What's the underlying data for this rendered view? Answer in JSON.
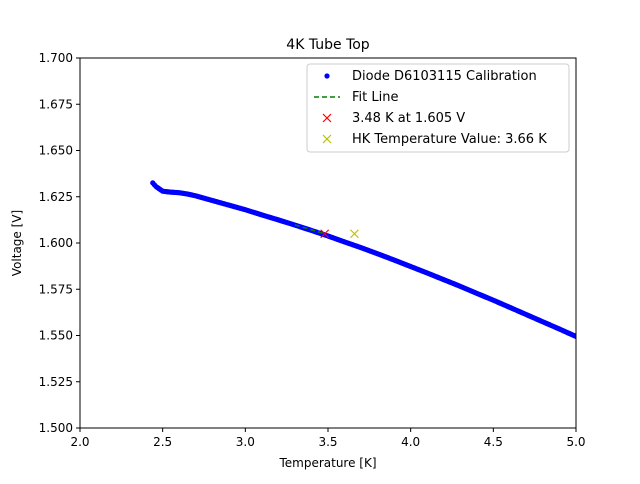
{
  "chart_data": {
    "type": "scatter",
    "title": "4K Tube Top",
    "xlabel": "Temperature [K]",
    "ylabel": "Voltage [V]",
    "xlim": [
      2.0,
      5.0
    ],
    "ylim": [
      1.5,
      1.7
    ],
    "grid": false,
    "legend_position": "top-right",
    "x_ticks": [
      {
        "value": 2.0,
        "label": "2.0"
      },
      {
        "value": 2.5,
        "label": "2.5"
      },
      {
        "value": 3.0,
        "label": "3.0"
      },
      {
        "value": 3.5,
        "label": "3.5"
      },
      {
        "value": 4.0,
        "label": "4.0"
      },
      {
        "value": 4.5,
        "label": "4.5"
      },
      {
        "value": 5.0,
        "label": "5.0"
      }
    ],
    "y_ticks": [
      {
        "value": 1.5,
        "label": "1.500"
      },
      {
        "value": 1.525,
        "label": "1.525"
      },
      {
        "value": 1.55,
        "label": "1.550"
      },
      {
        "value": 1.575,
        "label": "1.575"
      },
      {
        "value": 1.6,
        "label": "1.600"
      },
      {
        "value": 1.625,
        "label": "1.625"
      },
      {
        "value": 1.65,
        "label": "1.650"
      },
      {
        "value": 1.675,
        "label": "1.675"
      },
      {
        "value": 1.7,
        "label": "1.700"
      }
    ],
    "series": [
      {
        "name": "Diode D6103115 Calibration",
        "kind": "points",
        "marker": "dot",
        "color": "#0000ff",
        "x": [
          2.44,
          2.45,
          2.46,
          2.5,
          2.55,
          2.6,
          2.65,
          2.7,
          2.8,
          2.9,
          3.0,
          3.1,
          3.2,
          3.3,
          3.4,
          3.5,
          3.6,
          3.7,
          3.8,
          3.9,
          4.0,
          4.1,
          4.2,
          4.3,
          4.4,
          4.5,
          4.6,
          4.7,
          4.8,
          4.9,
          5.0
        ],
        "y": [
          1.6325,
          1.6315,
          1.6305,
          1.628,
          1.6275,
          1.6272,
          1.6265,
          1.6255,
          1.623,
          1.6205,
          1.618,
          1.6152,
          1.6125,
          1.6097,
          1.6068,
          1.6038,
          1.6006,
          1.5975,
          1.5942,
          1.5908,
          1.5873,
          1.5838,
          1.5802,
          1.5766,
          1.5728,
          1.5691,
          1.5652,
          1.5613,
          1.5574,
          1.5535,
          1.5495
        ]
      },
      {
        "name": "Fit Line",
        "kind": "line",
        "style": "dashed",
        "color": "#008000",
        "x": [
          3.3,
          3.48
        ],
        "y": [
          1.6098,
          1.605
        ]
      },
      {
        "name": "3.48 K at 1.605 V",
        "kind": "points",
        "marker": "x",
        "color": "#ff0000",
        "x": [
          3.48
        ],
        "y": [
          1.605
        ]
      },
      {
        "name": "HK Temperature Value: 3.66 K",
        "kind": "points",
        "marker": "x",
        "color": "#bfbf00",
        "x": [
          3.66
        ],
        "y": [
          1.605
        ]
      }
    ]
  }
}
